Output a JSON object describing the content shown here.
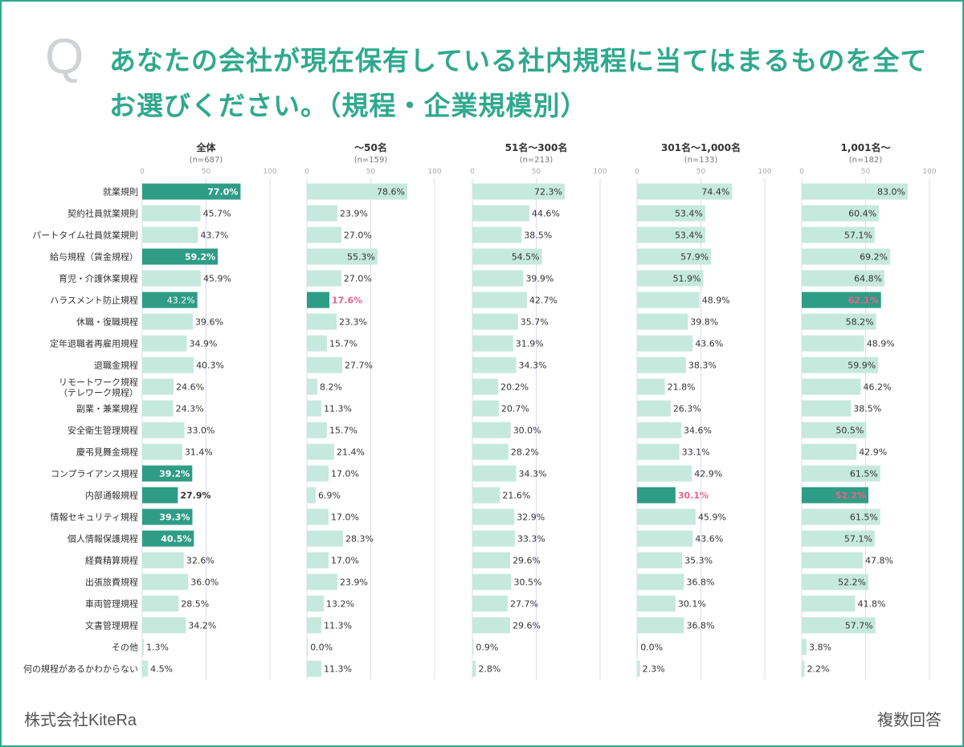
{
  "title": "あなたの会社が現在保有している社内規程に当てはまるものを全てお選びください。（規程・企業規模別）",
  "q_mark": "Q",
  "footer": {
    "company": "株式会社KiteRa",
    "note": "複数回答"
  },
  "colors": {
    "accent": "#2fa98e",
    "bar_light": "#c6e9dd",
    "bar_dark": "#2f9c85",
    "pink": "#e7628b",
    "grid": "#dcdcef"
  },
  "chart_data": {
    "type": "bar",
    "orientation": "horizontal",
    "axis_ticks": [
      "0",
      "50",
      "100"
    ],
    "xlim": [
      0,
      100
    ],
    "categories": [
      "就業規則",
      "契約社員就業規則",
      "パートタイム社員就業規則",
      "給与規程（賃金規程）",
      "育児・介護休業規程",
      "ハラスメント防止規程",
      "休職・復職規程",
      "定年退職者再雇用規程",
      "退職金規程",
      "リモートワーク規程",
      "副業・兼業規程",
      "安全衛生管理規程",
      "慶弔見舞金規程",
      "コンプライアンス規程",
      "内部通報規程",
      "情報セキュリティ規程",
      "個人情報保護規程",
      "経費精算規程",
      "出張旅費規程",
      "車両管理規程",
      "文書管理規程",
      "その他",
      "何の規程があるかわからない"
    ],
    "category_sublabels": {
      "9": "（テレワーク規程）"
    },
    "series": [
      {
        "name": "全体",
        "n": "(n=687)",
        "values": [
          77.0,
          45.7,
          43.7,
          59.2,
          45.9,
          43.2,
          39.6,
          34.9,
          40.3,
          24.6,
          24.3,
          33.0,
          31.4,
          39.2,
          27.9,
          39.3,
          40.5,
          32.6,
          36.0,
          28.5,
          34.2,
          1.3,
          4.5
        ],
        "labels": [
          "77.0%",
          "45.7%",
          "43.7%",
          "59.2%",
          "45.9%",
          "43.2%",
          "39.6%",
          "34.9%",
          "40.3%",
          "24.6%",
          "24.3%",
          "33.0%",
          "31.4%",
          "39.2%",
          "27.9%",
          "39.3%",
          "40.5%",
          "32.6%",
          "36.0%",
          "28.5%",
          "34.2%",
          "1.3%",
          "4.5%"
        ],
        "dark": [
          0,
          3,
          5,
          13,
          14,
          15,
          16
        ],
        "bold": [
          0,
          3,
          13,
          14,
          15,
          16
        ],
        "pink": []
      },
      {
        "name": "〜50名",
        "n": "(n=159)",
        "values": [
          78.6,
          23.9,
          27.0,
          55.3,
          27.0,
          17.6,
          23.3,
          15.7,
          27.7,
          8.2,
          11.3,
          15.7,
          21.4,
          17.0,
          6.9,
          17.0,
          28.3,
          17.0,
          23.9,
          13.2,
          11.3,
          0.0,
          11.3
        ],
        "labels": [
          "78.6%",
          "23.9%",
          "27.0%",
          "55.3%",
          "27.0%",
          "17.6%",
          "23.3%",
          "15.7%",
          "27.7%",
          "8.2%",
          "11.3%",
          "15.7%",
          "21.4%",
          "17.0%",
          "6.9%",
          "17.0%",
          "28.3%",
          "17.0%",
          "23.9%",
          "13.2%",
          "11.3%",
          "0.0%",
          "11.3%"
        ],
        "dark": [
          5
        ],
        "bold": [],
        "pink": [
          5
        ]
      },
      {
        "name": "51名〜300名",
        "n": "(n=213)",
        "values": [
          72.3,
          44.6,
          38.5,
          54.5,
          39.9,
          42.7,
          35.7,
          31.9,
          34.3,
          20.2,
          20.7,
          30.0,
          28.2,
          34.3,
          21.6,
          32.9,
          33.3,
          29.6,
          30.5,
          27.7,
          29.6,
          0.9,
          2.8
        ],
        "labels": [
          "72.3%",
          "44.6%",
          "38.5%",
          "54.5%",
          "39.9%",
          "42.7%",
          "35.7%",
          "31.9%",
          "34.3%",
          "20.2%",
          "20.7%",
          "30.0%",
          "28.2%",
          "34.3%",
          "21.6%",
          "32.9%",
          "33.3%",
          "29.6%",
          "30.5%",
          "27.7%",
          "29.6%",
          "0.9%",
          "2.8%"
        ],
        "dark": [],
        "bold": [],
        "pink": []
      },
      {
        "name": "301名〜1,000名",
        "n": "(n=133)",
        "values": [
          74.4,
          53.4,
          53.4,
          57.9,
          51.9,
          48.9,
          39.8,
          43.6,
          38.3,
          21.8,
          26.3,
          34.6,
          33.1,
          42.9,
          30.1,
          45.9,
          43.6,
          35.3,
          36.8,
          30.1,
          36.8,
          0.0,
          2.3
        ],
        "labels": [
          "74.4%",
          "53.4%",
          "53.4%",
          "57.9%",
          "51.9%",
          "48.9%",
          "39.8%",
          "43.6%",
          "38.3%",
          "21.8%",
          "26.3%",
          "34.6%",
          "33.1%",
          "42.9%",
          "30.1%",
          "45.9%",
          "43.6%",
          "35.3%",
          "36.8%",
          "30.1%",
          "36.8%",
          "0.0%",
          "2.3%"
        ],
        "dark": [
          14
        ],
        "bold": [],
        "pink": [
          14
        ]
      },
      {
        "name": "1,001名〜",
        "n": "(n=182)",
        "values": [
          83.0,
          60.4,
          57.1,
          69.2,
          64.8,
          62.1,
          58.2,
          48.9,
          59.9,
          46.2,
          38.5,
          50.5,
          42.9,
          61.5,
          52.2,
          61.5,
          57.1,
          47.8,
          52.2,
          41.8,
          57.7,
          3.8,
          2.2
        ],
        "labels": [
          "83.0%",
          "60.4%",
          "57.1%",
          "69.2%",
          "64.8%",
          "62.1%",
          "58.2%",
          "48.9%",
          "59.9%",
          "46.2%",
          "38.5%",
          "50.5%",
          "42.9%",
          "61.5%",
          "52.2%",
          "61.5%",
          "57.1%",
          "47.8%",
          "52.2%",
          "41.8%",
          "57.7%",
          "3.8%",
          "2.2%"
        ],
        "dark": [
          5,
          14
        ],
        "bold": [],
        "pink": [
          5,
          14
        ]
      }
    ]
  }
}
